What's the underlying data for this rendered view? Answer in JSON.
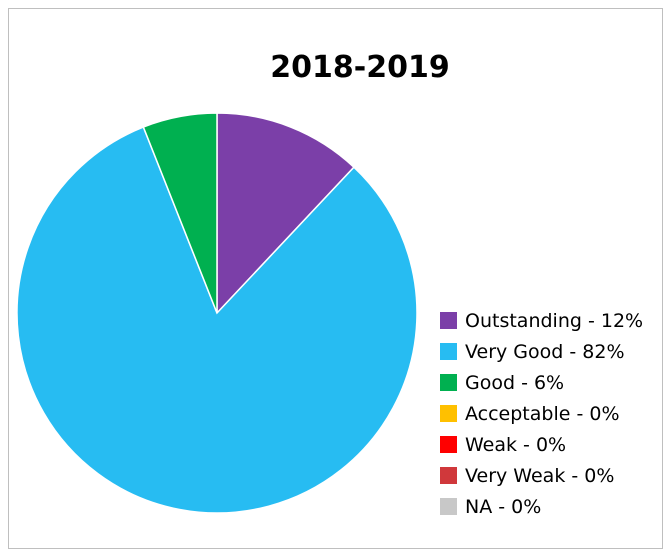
{
  "chart_data": {
    "type": "pie",
    "title": "2018-2019",
    "slices": [
      {
        "label": "Outstanding - 12%",
        "value": 12,
        "color": "#7b3fa8"
      },
      {
        "label": "Very Good - 82%",
        "value": 82,
        "color": "#27bcf2"
      },
      {
        "label": "Good - 6%",
        "value": 6,
        "color": "#00b050"
      },
      {
        "label": "Acceptable - 0%",
        "value": 0,
        "color": "#ffc000"
      },
      {
        "label": "Weak - 0%",
        "value": 0,
        "color": "#ff0000"
      },
      {
        "label": "Very Weak - 0%",
        "value": 0,
        "color": "#d0383b"
      },
      {
        "label": "NA - 0%",
        "value": 0,
        "color": "#c8c8c8"
      }
    ],
    "legend_position": "right"
  }
}
